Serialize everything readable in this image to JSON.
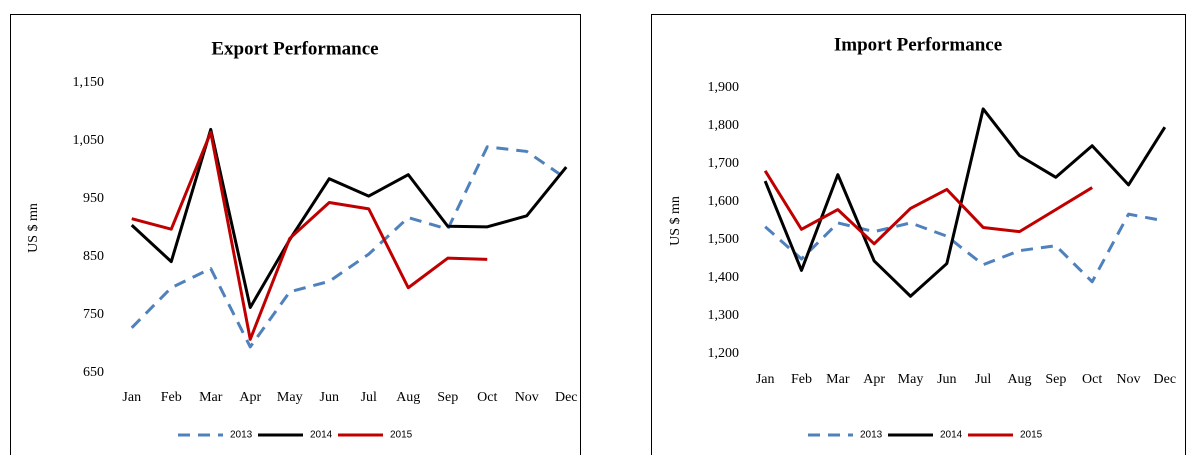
{
  "chart_data": [
    {
      "type": "line",
      "title": "Export Performance",
      "y_label": "US $ mn",
      "categories": [
        "Jan",
        "Feb",
        "Mar",
        "Apr",
        "May",
        "Jun",
        "Jul",
        "Aug",
        "Sep",
        "Oct",
        "Nov",
        "Dec"
      ],
      "ylim": [
        650,
        1150
      ],
      "yticks": [
        650,
        750,
        850,
        950,
        {
          "value": 1050,
          "label": "1,050"
        },
        {
          "value": 1150,
          "label": "1,150"
        }
      ],
      "grid": false,
      "legend": "bottom",
      "series": [
        {
          "name": "2013",
          "color": "#4f81bd",
          "dashed": true,
          "values": [
            728,
            797,
            830,
            695,
            790,
            808,
            855,
            918,
            898,
            1040,
            1032,
            985
          ]
        },
        {
          "name": "2014",
          "color": "#000000",
          "values": [
            905,
            842,
            1070,
            763,
            880,
            985,
            955,
            992,
            903,
            902,
            921,
            1005
          ]
        },
        {
          "name": "2015",
          "color": "#c00000",
          "values": [
            916,
            898,
            1065,
            708,
            882,
            944,
            933,
            797,
            848,
            846,
            null,
            null
          ]
        }
      ]
    },
    {
      "type": "line",
      "title": "Import Performance",
      "y_label": "US $ mn",
      "categories": [
        "Jan",
        "Feb",
        "Mar",
        "Apr",
        "May",
        "Jun",
        "Jul",
        "Aug",
        "Sep",
        "Oct",
        "Nov",
        "Dec"
      ],
      "ylim": [
        1200,
        1900
      ],
      "yticks": [
        {
          "value": 1200,
          "label": "1,200"
        },
        {
          "value": 1300,
          "label": "1,300"
        },
        {
          "value": 1400,
          "label": "1,400"
        },
        {
          "value": 1500,
          "label": "1,500"
        },
        {
          "value": 1600,
          "label": "1,600"
        },
        {
          "value": 1700,
          "label": "1,700"
        },
        {
          "value": 1800,
          "label": "1,800"
        },
        {
          "value": 1900,
          "label": "1,900"
        }
      ],
      "grid": false,
      "legend": "bottom",
      "series": [
        {
          "name": "2013",
          "color": "#4f81bd",
          "dashed": true,
          "values": [
            1535,
            1450,
            1545,
            1522,
            1545,
            1510,
            1435,
            1472,
            1485,
            1390,
            1568,
            1550
          ]
        },
        {
          "name": "2014",
          "color": "#000000",
          "values": [
            1655,
            1420,
            1672,
            1445,
            1352,
            1438,
            1845,
            1722,
            1665,
            1748,
            1645,
            1797
          ]
        },
        {
          "name": "2015",
          "color": "#c00000",
          "values": [
            1682,
            1528,
            1580,
            1490,
            1583,
            1633,
            1533,
            1522,
            1580,
            1638,
            null,
            null
          ]
        }
      ]
    }
  ]
}
